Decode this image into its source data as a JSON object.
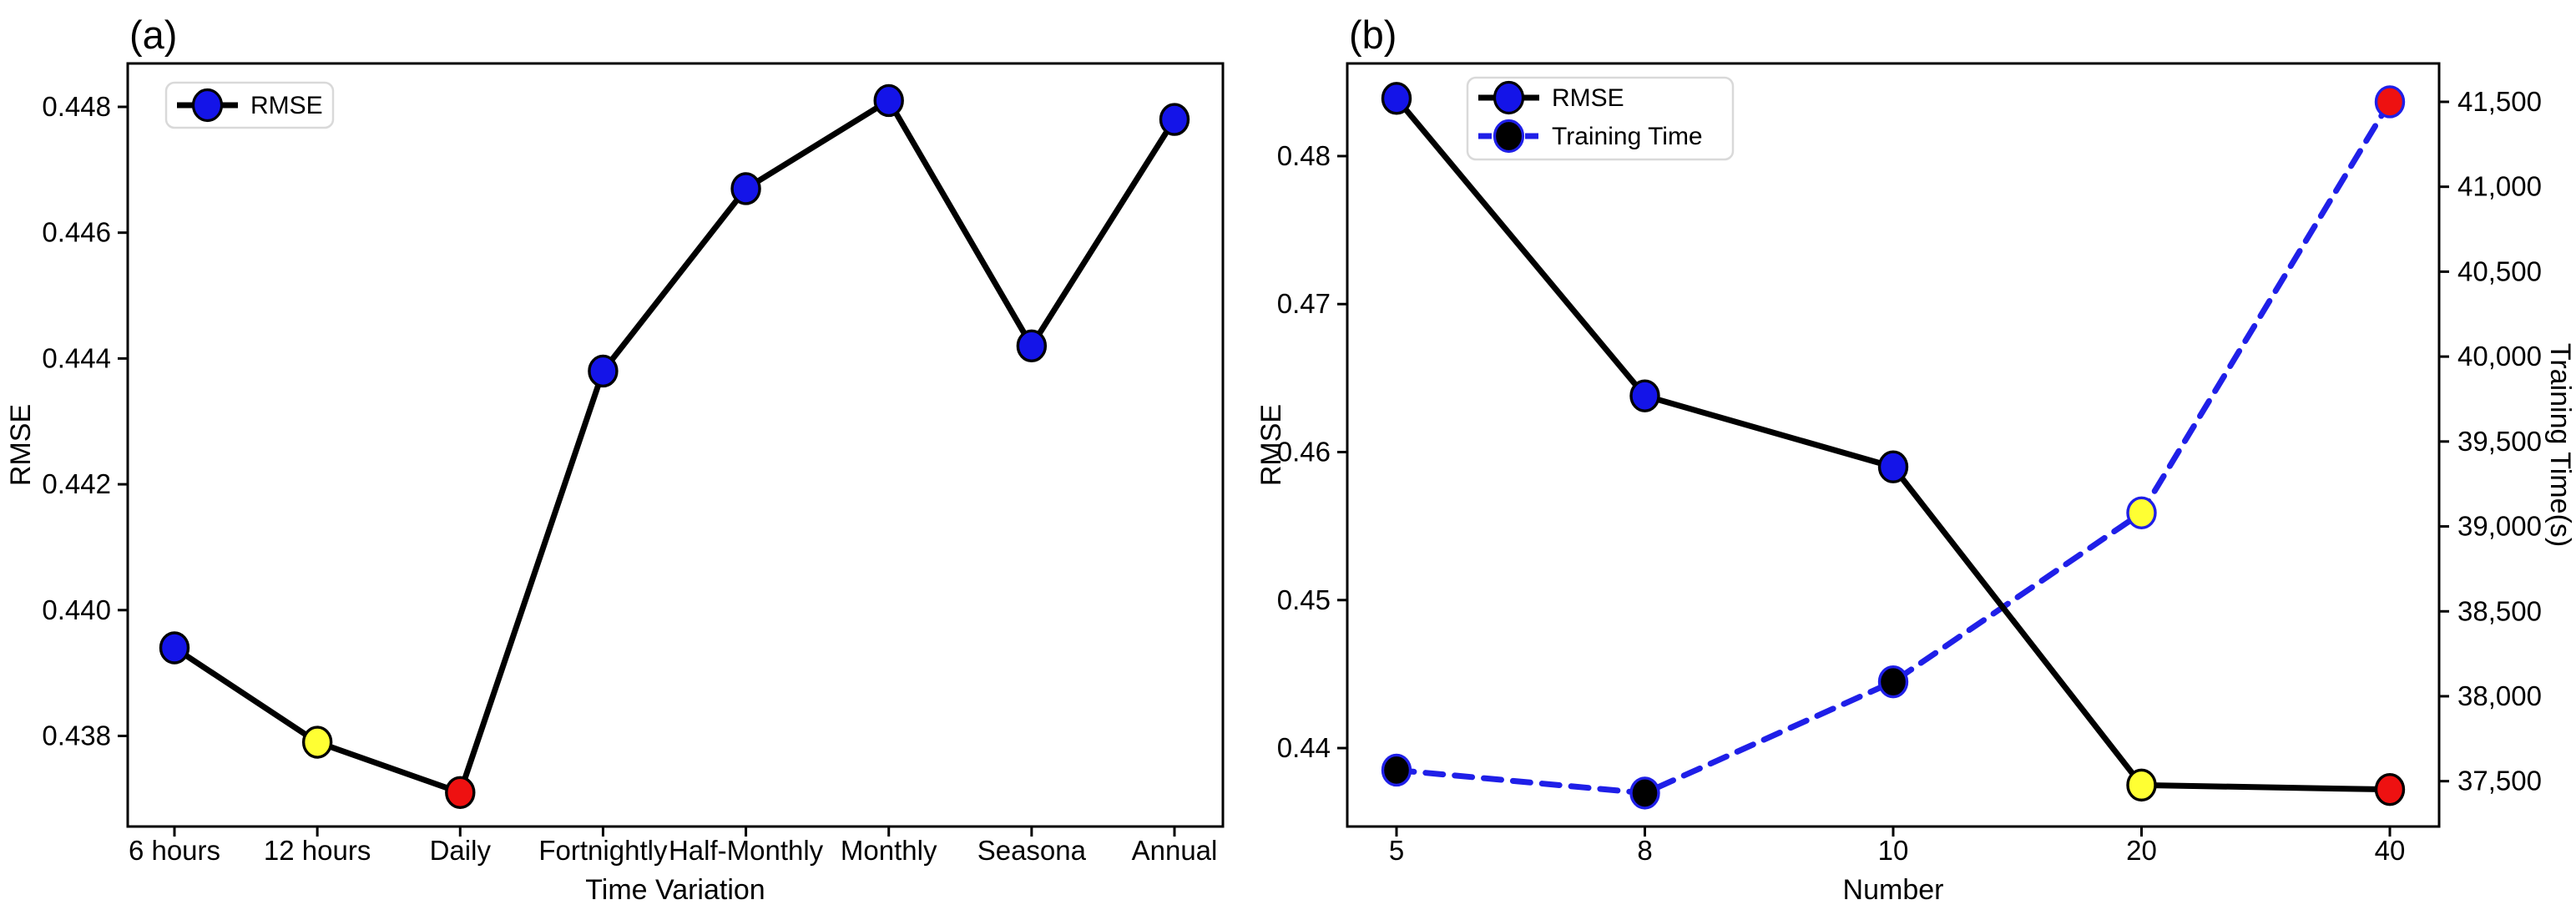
{
  "figure": {
    "background": "#FFFFFF",
    "panel_count": 2
  },
  "colors": {
    "line_black": "#000000",
    "marker_blue": "#1414E8",
    "dash_blue": "#1F1FE8",
    "marker_yellow": "#FFFF33",
    "marker_red": "#EE1111",
    "marker_black": "#000000",
    "legend_border": "#D9D9D9",
    "text": "#000000"
  },
  "chart_data": [
    {
      "type": "line",
      "panel_label": "(a)",
      "xlabel": "Time Variation",
      "categories": [
        "6 hours",
        "12 hours",
        "Daily",
        "Fortnightly",
        "Half-Monthly",
        "Monthly",
        "Seasona",
        "Annual"
      ],
      "left_axis": {
        "label": "RMSE",
        "range": [
          0.43656,
          0.44869
        ],
        "grid": false,
        "ticks": [
          {
            "value": 0.438,
            "label": "0.438"
          },
          {
            "value": 0.44,
            "label": "0.440"
          },
          {
            "value": 0.442,
            "label": "0.442"
          },
          {
            "value": 0.444,
            "label": "0.444"
          },
          {
            "value": 0.446,
            "label": "0.446"
          },
          {
            "value": 0.448,
            "label": "0.448"
          }
        ]
      },
      "series": [
        {
          "name": "RMSE",
          "axis": "left",
          "color": "#000000",
          "dashed": false,
          "marker_fill": "#1414E8",
          "marker_edge": "#000000",
          "point_fills": [
            "#1414E8",
            "#FFFF33",
            "#EE1111",
            "#1414E8",
            "#1414E8",
            "#1414E8",
            "#1414E8",
            "#1414E8"
          ],
          "values": [
            0.4394,
            0.4379,
            0.4371,
            0.4438,
            0.4467,
            0.4481,
            0.4442,
            0.4478
          ]
        }
      ],
      "legend": {
        "position": "upper-left",
        "entries": [
          {
            "label": "RMSE",
            "series": 0
          }
        ]
      }
    },
    {
      "type": "line",
      "panel_label": "(b)",
      "xlabel": "Number",
      "categories": [
        "5",
        "8",
        "10",
        "20",
        "40"
      ],
      "left_axis": {
        "label": "RMSE",
        "range": [
          0.4347,
          0.48626
        ],
        "grid": false,
        "ticks": [
          {
            "value": 0.44,
            "label": "0.44"
          },
          {
            "value": 0.45,
            "label": "0.45"
          },
          {
            "value": 0.46,
            "label": "0.46"
          },
          {
            "value": 0.47,
            "label": "0.47"
          },
          {
            "value": 0.48,
            "label": "0.48"
          }
        ]
      },
      "right_axis": {
        "label": "Training Time(s)",
        "range": [
          37233,
          41726
        ],
        "grid": false,
        "ticks": [
          {
            "value": 37500,
            "label": "37,500"
          },
          {
            "value": 38000,
            "label": "38,000"
          },
          {
            "value": 38500,
            "label": "38,500"
          },
          {
            "value": 39000,
            "label": "39,000"
          },
          {
            "value": 39500,
            "label": "39,500"
          },
          {
            "value": 40000,
            "label": "40,000"
          },
          {
            "value": 40500,
            "label": "40,500"
          },
          {
            "value": 41000,
            "label": "41,000"
          },
          {
            "value": 41500,
            "label": "41,500"
          }
        ]
      },
      "series": [
        {
          "name": "Training Time",
          "axis": "right",
          "color": "#1F1FE8",
          "dashed": true,
          "marker_fill": "#000000",
          "marker_edge": "#1F1FE8",
          "point_fills": [
            "#000000",
            "#000000",
            "#000000",
            "#FFFF33",
            "#EE1111"
          ],
          "values": [
            37565,
            37430,
            38085,
            39080,
            41500
          ]
        },
        {
          "name": "RMSE",
          "axis": "left",
          "color": "#000000",
          "dashed": false,
          "marker_fill": "#1414E8",
          "marker_edge": "#000000",
          "point_fills": [
            "#1414E8",
            "#1414E8",
            "#1414E8",
            "#FFFF33",
            "#EE1111"
          ],
          "values": [
            0.4839,
            0.4638,
            0.459,
            0.4375,
            0.4372
          ]
        }
      ],
      "legend": {
        "position": "upper-left",
        "entries": [
          {
            "label": "RMSE",
            "series": 1
          },
          {
            "label": "Training Time",
            "series": 0
          }
        ]
      }
    }
  ]
}
